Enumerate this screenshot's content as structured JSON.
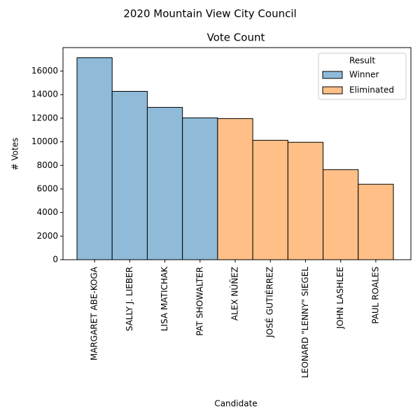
{
  "chart_data": {
    "type": "bar",
    "suptitle": "2020 Mountain View City Council",
    "title": "Vote Count",
    "xlabel": "Candidate",
    "ylabel": "# Votes",
    "categories": [
      "MARGARET ABE-KOGA",
      "SALLY J. LIEBER",
      "LISA MATICHAK",
      "PAT SHOWALTER",
      "ALEX NÚÑEZ",
      "JOSÉ GUTIÉRREZ",
      "LEONARD \"LENNY\" SIEGEL",
      "JOHN LASHLEE",
      "PAUL ROALES"
    ],
    "series": [
      {
        "name": "Winner",
        "color": "#8fbbd9",
        "values": [
          17130,
          14280,
          12920,
          12030,
          null,
          null,
          null,
          null,
          null
        ]
      },
      {
        "name": "Eliminated",
        "color": "#ffbf86",
        "values": [
          null,
          null,
          null,
          null,
          11970,
          10130,
          9960,
          7640,
          6400
        ]
      }
    ],
    "ylim": [
      0,
      17990
    ],
    "yticks": [
      0,
      2000,
      4000,
      6000,
      8000,
      10000,
      12000,
      14000,
      16000
    ],
    "legend_title": "Result",
    "legend_position": "upper right"
  }
}
